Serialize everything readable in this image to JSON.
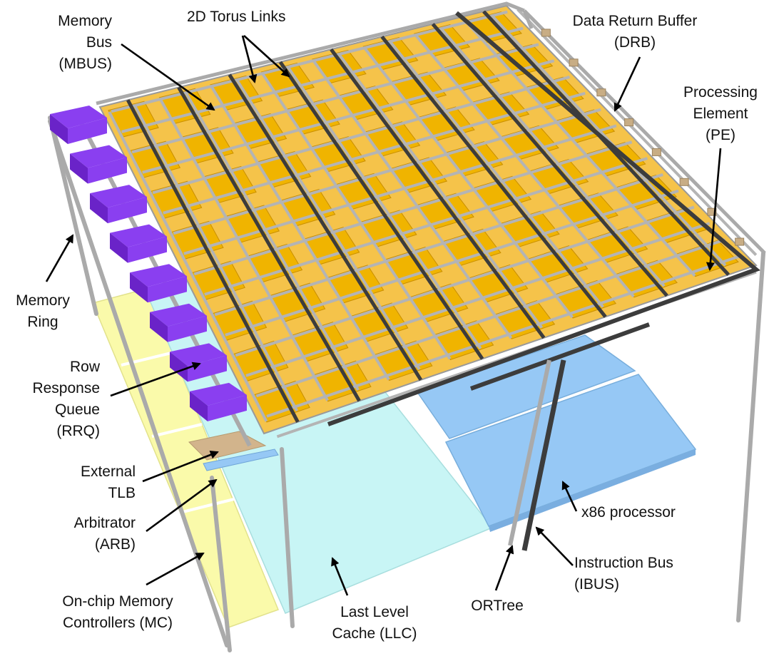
{
  "labels": {
    "mbus": [
      "Memory",
      "Bus",
      "(MBUS)"
    ],
    "torus": [
      "2D Torus Links"
    ],
    "drb": [
      "Data Return Buffer",
      "(DRB)"
    ],
    "pe": [
      "Processing",
      "Element",
      "(PE)"
    ],
    "ring": [
      "Memory",
      "Ring"
    ],
    "rrq": [
      "Row",
      "Response",
      "Queue",
      "(RRQ)"
    ],
    "tlb": [
      "External",
      "TLB"
    ],
    "arb": [
      "Arbitrator",
      "(ARB)"
    ],
    "mc": [
      "On-chip Memory",
      "Controllers (MC)"
    ],
    "llc": [
      "Last Level",
      "Cache (LLC)"
    ],
    "ortree": [
      "ORTree"
    ],
    "ibus": [
      "Instruction Bus",
      "(IBUS)"
    ],
    "x86": [
      "x86 processor"
    ]
  },
  "colors": {
    "pe": "#f0b400",
    "pe_dark": "#c98f00",
    "link": "#b4b4b4",
    "link_dark": "#8c8c8c",
    "bus": "#3c3c3c",
    "rrq": "#8a3ff0",
    "rrq_dark": "#6a23c8",
    "drb": "#c8ad85",
    "llc": "#c8f5f5",
    "x86": "#96c8f5",
    "mc": "#fafaaa",
    "tlb": "#d2b48c",
    "arb": "#96c8f5",
    "pillar": "#aaaaaa"
  }
}
